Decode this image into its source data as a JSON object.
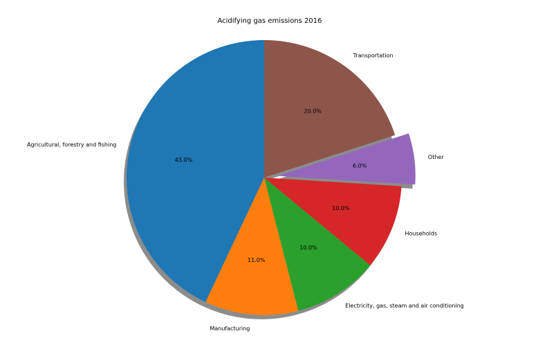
{
  "chart_data": {
    "type": "pie",
    "title": "Acidifying gas emissions 2016",
    "start_angle_deg": 90,
    "direction": "counterclockwise",
    "shadow": true,
    "slices": [
      {
        "label": "Agricultural, forestry and fishing",
        "value": 43.0,
        "pct_label": "43.0%",
        "color": "#1f77b4",
        "explode": 0
      },
      {
        "label": "Manufacturing",
        "value": 11.0,
        "pct_label": "11.0%",
        "color": "#ff7f0e",
        "explode": 0
      },
      {
        "label": "Electricity, gas, steam and air conditioning",
        "value": 10.0,
        "pct_label": "10.0%",
        "color": "#2ca02c",
        "explode": 0
      },
      {
        "label": "Households",
        "value": 10.0,
        "pct_label": "10.0%",
        "color": "#d62728",
        "explode": 0
      },
      {
        "label": "Other",
        "value": 6.0,
        "pct_label": "6.0%",
        "color": "#9467bd",
        "explode": 0.1
      },
      {
        "label": "Transportation",
        "value": 20.0,
        "pct_label": "20.0%",
        "color": "#8c564b",
        "explode": 0
      }
    ]
  }
}
